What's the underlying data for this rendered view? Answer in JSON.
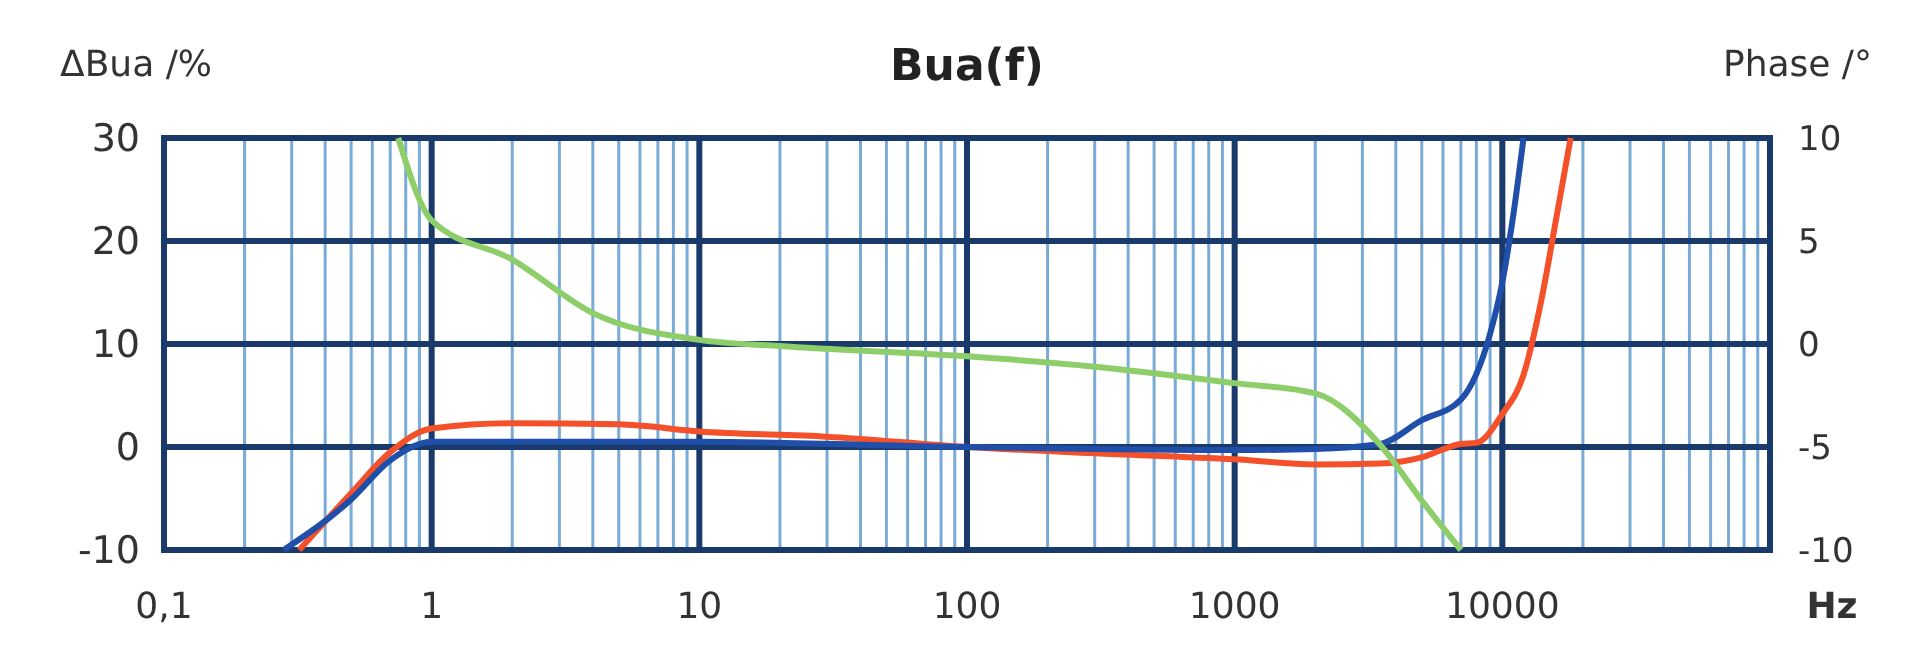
{
  "chart_data": {
    "type": "line",
    "title": "Bua(f)",
    "ylabel": "ΔBua /%",
    "y2label": "Phase /°",
    "xlabel": "Hz",
    "log": "x",
    "grid": true,
    "xlim": [
      0.1,
      100000
    ],
    "xticks": [
      {
        "value": 0.1,
        "label": "0,1"
      },
      {
        "value": 0.2,
        "label": null
      },
      {
        "value": 0.3,
        "label": null
      },
      {
        "value": 0.4,
        "label": null
      },
      {
        "value": 0.5,
        "label": null
      },
      {
        "value": 0.6,
        "label": null
      },
      {
        "value": 0.7,
        "label": null
      },
      {
        "value": 0.8,
        "label": null
      },
      {
        "value": 0.9,
        "label": null
      },
      1,
      {
        "value": 2,
        "label": null
      },
      {
        "value": 3,
        "label": null
      },
      {
        "value": 4,
        "label": null
      },
      {
        "value": 5,
        "label": null
      },
      {
        "value": 6,
        "label": null
      },
      {
        "value": 7,
        "label": null
      },
      {
        "value": 8,
        "label": null
      },
      {
        "value": 9,
        "label": null
      },
      10,
      {
        "value": 20,
        "label": null
      },
      {
        "value": 30,
        "label": null
      },
      {
        "value": 40,
        "label": null
      },
      {
        "value": 50,
        "label": null
      },
      {
        "value": 60,
        "label": null
      },
      {
        "value": 70,
        "label": null
      },
      {
        "value": 80,
        "label": null
      },
      {
        "value": 90,
        "label": null
      },
      100,
      {
        "value": 200,
        "label": null
      },
      {
        "value": 300,
        "label": null
      },
      {
        "value": 400,
        "label": null
      },
      {
        "value": 500,
        "label": null
      },
      {
        "value": 600,
        "label": null
      },
      {
        "value": 700,
        "label": null
      },
      {
        "value": 800,
        "label": null
      },
      {
        "value": 900,
        "label": null
      },
      1000,
      {
        "value": 2000,
        "label": null
      },
      {
        "value": 3000,
        "label": null
      },
      {
        "value": 4000,
        "label": null
      },
      {
        "value": 5000,
        "label": null
      },
      {
        "value": 6000,
        "label": null
      },
      {
        "value": 7000,
        "label": null
      },
      {
        "value": 8000,
        "label": null
      },
      {
        "value": 9000,
        "label": null
      },
      10000,
      {
        "value": 20000,
        "label": null
      },
      {
        "value": 30000,
        "label": null
      },
      {
        "value": 40000,
        "label": null
      },
      {
        "value": 50000,
        "label": null
      },
      {
        "value": 60000,
        "label": null
      },
      {
        "value": 70000,
        "label": null
      },
      {
        "value": 80000,
        "label": null
      },
      {
        "value": 90000,
        "label": null
      }
    ],
    "ylim": [
      -10,
      30
    ],
    "yticks": [
      -10,
      0,
      10,
      20,
      30
    ],
    "y2lim": [
      -10,
      10
    ],
    "y2ticks": [
      -10,
      -5,
      0,
      5,
      10
    ],
    "series": [
      {
        "color": "#f4502a",
        "x": [
          0.32,
          0.5,
          0.7,
          1,
          2,
          5,
          10,
          30,
          100,
          300,
          1000,
          2000,
          3500,
          5000,
          7000,
          8000,
          10000,
          12000,
          14000,
          16000,
          18000
        ],
        "values": [
          -10,
          -4.5,
          -0.5,
          1.8,
          2.3,
          2.2,
          1.5,
          1,
          0,
          -0.6,
          -1.2,
          -1.7,
          -1.6,
          -1,
          0.3,
          0.4,
          3.2,
          7,
          14.3,
          22.6,
          30
        ]
      },
      {
        "color": "#1f4fa8",
        "x": [
          0.28,
          0.5,
          0.7,
          1,
          10,
          100,
          1000,
          2000,
          3500,
          5000,
          7000,
          9000,
          10000,
          11000,
          12000
        ],
        "values": [
          -10,
          -5.1,
          -1.3,
          0.5,
          0.5,
          0,
          -0.3,
          -0.2,
          0.3,
          2.6,
          4.6,
          11,
          16,
          22.6,
          30
        ]
      },
      {
        "color": "#8dce6a",
        "axis": "y2",
        "x": [
          0.75,
          1,
          2,
          4,
          10,
          20,
          100,
          300,
          1000,
          2000,
          3500,
          5000,
          7000
        ],
        "values": [
          10,
          6,
          4.1,
          1.5,
          0.2,
          -0.1,
          -0.6,
          -1.1,
          -1.9,
          -2.4,
          -4.9,
          -7.6,
          -10
        ]
      }
    ]
  }
}
